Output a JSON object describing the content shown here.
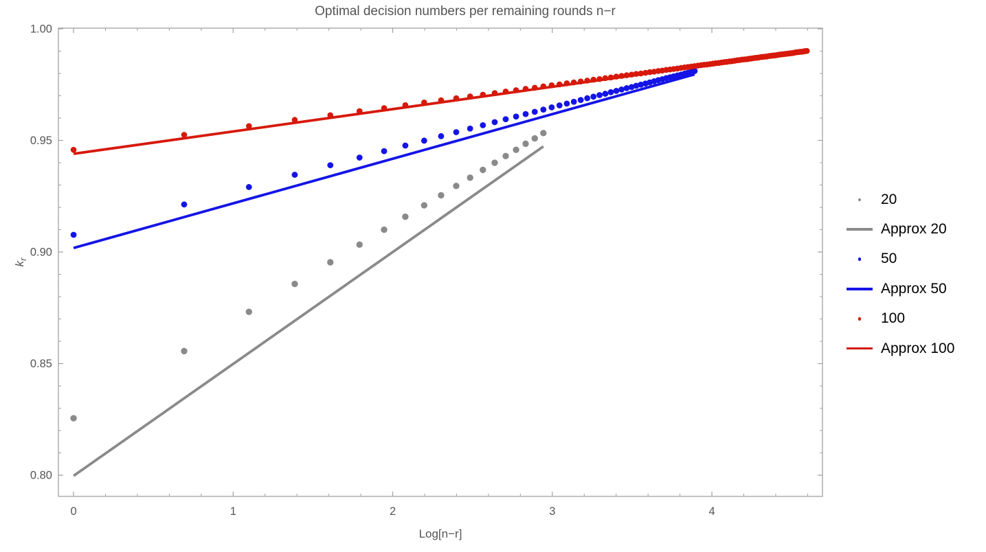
{
  "title": "Optimal decision numbers per remaining rounds n−r",
  "xlabel": "Log[n−r]",
  "ylabel_k": "k",
  "ylabel_sub": "r",
  "colors": {
    "background": "#ffffff",
    "frame": "#a0a0a0",
    "tick_label": "#545454",
    "title_text": "#545454",
    "legend_text": "#000000",
    "series_gray": "#8a8a8a",
    "series_blue": "#1414e6",
    "series_red": "#d6190b"
  },
  "legend": {
    "items": [
      {
        "label": "20",
        "type": "dot",
        "color": "#8a8a8a",
        "size": 4,
        "length": 38,
        "thickness": 3.2
      },
      {
        "label": "Approx 20",
        "type": "line",
        "color": "#8a8a8a",
        "size": 4,
        "length": 38,
        "thickness": 3.2
      },
      {
        "label": "50",
        "type": "dot",
        "color": "#1414e6",
        "size": 4.6,
        "length": 38,
        "thickness": 3.4
      },
      {
        "label": "Approx 50",
        "type": "line",
        "color": "#1414e6",
        "size": 4.6,
        "length": 38,
        "thickness": 3.4
      },
      {
        "label": "100",
        "type": "dot",
        "color": "#d6190b",
        "size": 4.6,
        "length": 38,
        "thickness": 3.4
      },
      {
        "label": "Approx 100",
        "type": "line",
        "color": "#d6190b",
        "size": 4.6,
        "length": 38,
        "thickness": 3.4
      }
    ]
  },
  "chart_data": {
    "type": "scatter",
    "title": "Optimal decision numbers per remaining rounds n−r",
    "xlabel": "Log[n−r]",
    "ylabel": "k_r",
    "xlim": [
      -0.095,
      4.693
    ],
    "ylim": [
      0.7905,
      1.0003
    ],
    "grid": false,
    "legend_position": "right-center",
    "frame_color": "#a0a0a0",
    "tick_label_color": "#545454",
    "tick_font_size": 16.5,
    "x_major_ticks": [
      {
        "v": 0,
        "label": "0"
      },
      {
        "v": 1,
        "label": "1"
      },
      {
        "v": 2,
        "label": "2"
      },
      {
        "v": 3,
        "label": "3"
      },
      {
        "v": 4,
        "label": "4"
      }
    ],
    "y_major_ticks": [
      {
        "v": 0.8,
        "label": "0.80"
      },
      {
        "v": 0.85,
        "label": "0.85"
      },
      {
        "v": 0.9,
        "label": "0.90"
      },
      {
        "v": 0.95,
        "label": "0.95"
      },
      {
        "v": 1.0,
        "label": "1.00"
      }
    ],
    "x_minor_step": 0.2,
    "y_minor_step": 0.01,
    "series": [
      {
        "name": "20",
        "type": "points",
        "color": "#8a8a8a",
        "marker_radius": 4.7,
        "points": [
          [
            0,
            0.8255
          ],
          [
            0.693,
            0.8556
          ],
          [
            1.099,
            0.8732
          ],
          [
            1.386,
            0.8857
          ],
          [
            1.609,
            0.8954
          ],
          [
            1.792,
            0.9033
          ],
          [
            1.946,
            0.91
          ],
          [
            2.079,
            0.9158
          ],
          [
            2.197,
            0.9209
          ],
          [
            2.303,
            0.9254
          ],
          [
            2.398,
            0.9296
          ],
          [
            2.485,
            0.9333
          ],
          [
            2.565,
            0.9368
          ],
          [
            2.639,
            0.94
          ],
          [
            2.708,
            0.943
          ],
          [
            2.773,
            0.9458
          ],
          [
            2.833,
            0.9485
          ],
          [
            2.89,
            0.9509
          ],
          [
            2.944,
            0.9533
          ]
        ]
      },
      {
        "name": "Approx 20",
        "type": "line",
        "color": "#8a8a8a",
        "width": 3.8,
        "points": [
          [
            0,
            0.7997
          ],
          [
            2.944,
            0.9473
          ]
        ]
      },
      {
        "name": "50",
        "type": "points",
        "color": "#1414e6",
        "marker_radius": 4.4,
        "points": [
          [
            0,
            0.9077
          ],
          [
            0.693,
            0.9213
          ],
          [
            1.099,
            0.9291
          ],
          [
            1.386,
            0.9346
          ],
          [
            1.609,
            0.9389
          ],
          [
            1.792,
            0.9423
          ],
          [
            1.946,
            0.9452
          ],
          [
            2.079,
            0.9477
          ],
          [
            2.197,
            0.9499
          ],
          [
            2.303,
            0.9519
          ],
          [
            2.398,
            0.9537
          ],
          [
            2.485,
            0.9553
          ],
          [
            2.565,
            0.9568
          ],
          [
            2.639,
            0.9582
          ],
          [
            2.708,
            0.9595
          ],
          [
            2.773,
            0.9607
          ],
          [
            2.833,
            0.9618
          ],
          [
            2.89,
            0.9628
          ],
          [
            2.944,
            0.9638
          ],
          [
            2.996,
            0.9648
          ],
          [
            3.045,
            0.9657
          ],
          [
            3.091,
            0.9665
          ],
          [
            3.135,
            0.9673
          ],
          [
            3.178,
            0.9681
          ],
          [
            3.219,
            0.9689
          ],
          [
            3.258,
            0.9696
          ],
          [
            3.296,
            0.9703
          ],
          [
            3.332,
            0.9709
          ],
          [
            3.367,
            0.9716
          ],
          [
            3.401,
            0.9722
          ],
          [
            3.434,
            0.9728
          ],
          [
            3.466,
            0.9734
          ],
          [
            3.497,
            0.9739
          ],
          [
            3.526,
            0.9745
          ],
          [
            3.555,
            0.975
          ],
          [
            3.584,
            0.9755
          ],
          [
            3.611,
            0.976
          ],
          [
            3.638,
            0.9765
          ],
          [
            3.664,
            0.977
          ],
          [
            3.689,
            0.9774
          ],
          [
            3.714,
            0.9779
          ],
          [
            3.738,
            0.9783
          ],
          [
            3.761,
            0.9787
          ],
          [
            3.784,
            0.9791
          ],
          [
            3.807,
            0.9795
          ],
          [
            3.829,
            0.9799
          ],
          [
            3.85,
            0.9803
          ],
          [
            3.871,
            0.9807
          ],
          [
            3.892,
            0.9811
          ]
        ]
      },
      {
        "name": "Approx 50",
        "type": "line",
        "color": "#1414e6",
        "width": 3.8,
        "points": [
          [
            0,
            0.9018
          ],
          [
            3.892,
            0.9796
          ]
        ]
      },
      {
        "name": "100",
        "type": "points",
        "color": "#d6190b",
        "marker_radius": 4.3,
        "points": [
          [
            0,
            0.9458
          ],
          [
            0.693,
            0.9525
          ],
          [
            1.099,
            0.9564
          ],
          [
            1.386,
            0.9592
          ],
          [
            1.609,
            0.9613
          ],
          [
            1.792,
            0.9631
          ],
          [
            1.946,
            0.9645
          ],
          [
            2.079,
            0.9658
          ],
          [
            2.197,
            0.967
          ],
          [
            2.303,
            0.968
          ],
          [
            2.398,
            0.9689
          ],
          [
            2.485,
            0.9697
          ],
          [
            2.565,
            0.9705
          ],
          [
            2.639,
            0.9712
          ],
          [
            2.708,
            0.9719
          ],
          [
            2.773,
            0.9725
          ],
          [
            2.833,
            0.9731
          ],
          [
            2.89,
            0.9736
          ],
          [
            2.944,
            0.9742
          ],
          [
            2.996,
            0.9747
          ],
          [
            3.045,
            0.9751
          ],
          [
            3.091,
            0.9756
          ],
          [
            3.135,
            0.976
          ],
          [
            3.178,
            0.9764
          ],
          [
            3.219,
            0.9768
          ],
          [
            3.258,
            0.9772
          ],
          [
            3.296,
            0.9775
          ],
          [
            3.332,
            0.9779
          ],
          [
            3.367,
            0.9782
          ],
          [
            3.401,
            0.9786
          ],
          [
            3.434,
            0.9789
          ],
          [
            3.466,
            0.9792
          ],
          [
            3.497,
            0.9795
          ],
          [
            3.526,
            0.9798
          ],
          [
            3.555,
            0.98
          ],
          [
            3.584,
            0.9803
          ],
          [
            3.611,
            0.9806
          ],
          [
            3.638,
            0.9808
          ],
          [
            3.664,
            0.9811
          ],
          [
            3.689,
            0.9813
          ],
          [
            3.714,
            0.9816
          ],
          [
            3.738,
            0.9818
          ],
          [
            3.761,
            0.982
          ],
          [
            3.784,
            0.9822
          ],
          [
            3.807,
            0.9825
          ],
          [
            3.829,
            0.9827
          ],
          [
            3.85,
            0.9829
          ],
          [
            3.871,
            0.9831
          ],
          [
            3.892,
            0.9833
          ],
          [
            3.912,
            0.9835
          ],
          [
            3.932,
            0.9837
          ],
          [
            3.951,
            0.9839
          ],
          [
            3.97,
            0.984
          ],
          [
            3.989,
            0.9842
          ],
          [
            4.007,
            0.9844
          ],
          [
            4.025,
            0.9846
          ],
          [
            4.043,
            0.9847
          ],
          [
            4.06,
            0.9849
          ],
          [
            4.078,
            0.9851
          ],
          [
            4.094,
            0.9852
          ],
          [
            4.111,
            0.9854
          ],
          [
            4.127,
            0.9855
          ],
          [
            4.143,
            0.9857
          ],
          [
            4.159,
            0.9859
          ],
          [
            4.174,
            0.986
          ],
          [
            4.19,
            0.9862
          ],
          [
            4.205,
            0.9863
          ],
          [
            4.22,
            0.9864
          ],
          [
            4.234,
            0.9866
          ],
          [
            4.248,
            0.9867
          ],
          [
            4.263,
            0.9869
          ],
          [
            4.277,
            0.987
          ],
          [
            4.29,
            0.9871
          ],
          [
            4.304,
            0.9873
          ],
          [
            4.317,
            0.9874
          ],
          [
            4.331,
            0.9875
          ],
          [
            4.344,
            0.9876
          ],
          [
            4.357,
            0.9878
          ],
          [
            4.369,
            0.9879
          ],
          [
            4.382,
            0.988
          ],
          [
            4.394,
            0.9881
          ],
          [
            4.407,
            0.9882
          ],
          [
            4.419,
            0.9884
          ],
          [
            4.431,
            0.9885
          ],
          [
            4.443,
            0.9886
          ],
          [
            4.454,
            0.9887
          ],
          [
            4.466,
            0.9888
          ],
          [
            4.477,
            0.9889
          ],
          [
            4.489,
            0.989
          ],
          [
            4.5,
            0.9891
          ],
          [
            4.511,
            0.9892
          ],
          [
            4.522,
            0.9894
          ],
          [
            4.533,
            0.9895
          ],
          [
            4.543,
            0.9896
          ],
          [
            4.554,
            0.9897
          ],
          [
            4.564,
            0.9897
          ],
          [
            4.575,
            0.9899
          ],
          [
            4.585,
            0.99
          ],
          [
            4.595,
            0.9901
          ]
        ]
      },
      {
        "name": "Approx 100",
        "type": "line",
        "color": "#d6190b",
        "width": 3.8,
        "points": [
          [
            0,
            0.944
          ],
          [
            4.595,
            0.99
          ]
        ]
      }
    ]
  }
}
